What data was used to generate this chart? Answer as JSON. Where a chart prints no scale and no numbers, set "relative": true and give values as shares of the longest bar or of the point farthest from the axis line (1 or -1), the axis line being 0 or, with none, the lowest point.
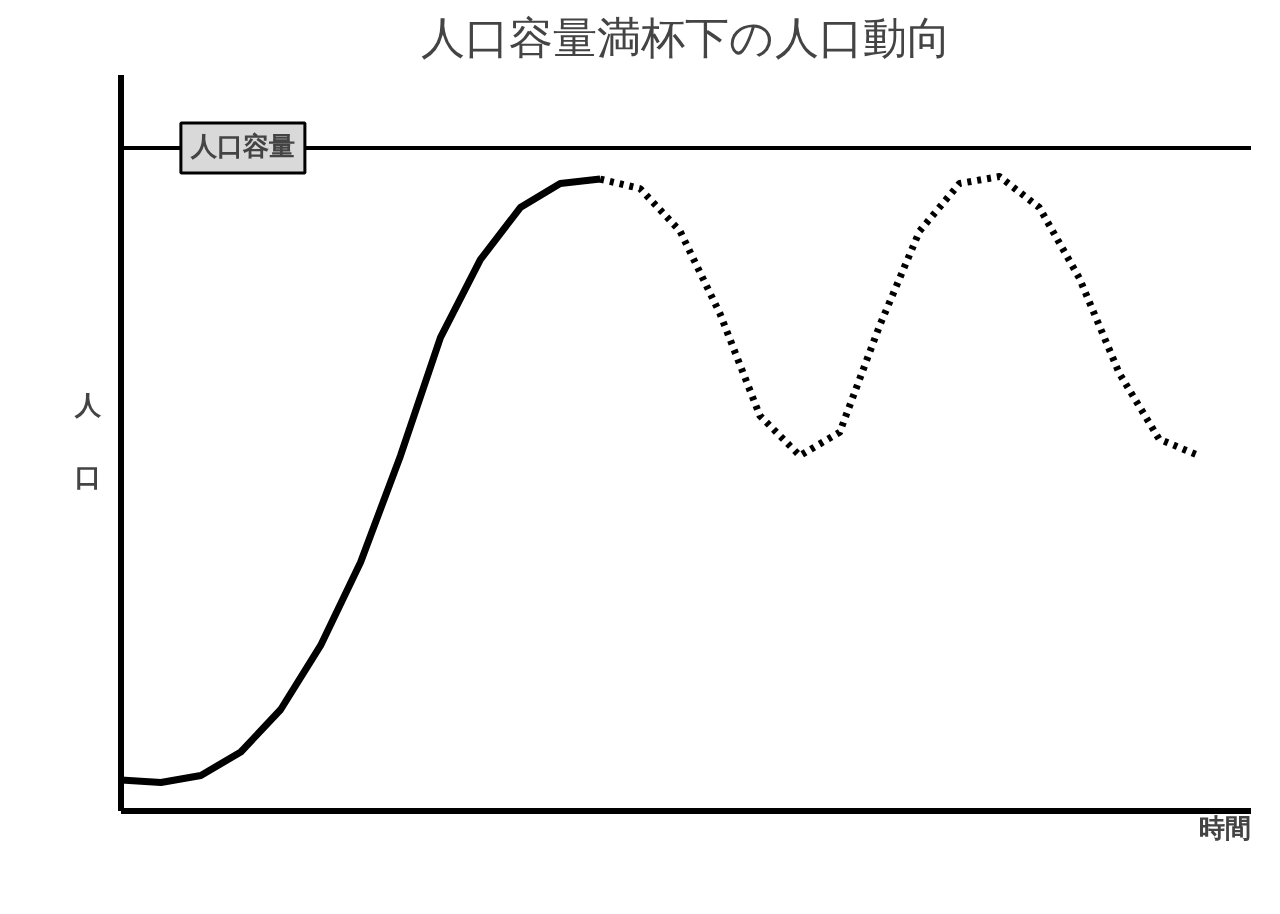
{
  "chart_data": {
    "type": "line",
    "title": "人口容量満杯下の人口動向",
    "ylabel": "人口",
    "xlabel": "時間",
    "relative": true,
    "marker": "none",
    "categories": [
      null,
      null,
      null,
      null,
      null,
      null,
      null,
      null,
      null,
      null,
      null,
      null,
      null,
      null,
      null,
      null,
      null,
      null,
      null,
      null,
      null,
      null,
      null,
      null,
      null,
      null,
      null,
      null
    ],
    "series": [
      {
        "color": "#000000",
        "line_style": "solid",
        "values": [
          0.049,
          0.045,
          0.056,
          0.093,
          0.16,
          0.261,
          0.392,
          0.56,
          0.746,
          0.869,
          0.951,
          0.989,
          0.996,
          null,
          null,
          null,
          null,
          null,
          null,
          null,
          null,
          null,
          null,
          null,
          null,
          null,
          null,
          null
        ]
      },
      {
        "color": "#000000",
        "line_style": "dotted",
        "values": [
          null,
          null,
          null,
          null,
          null,
          null,
          null,
          null,
          null,
          null,
          null,
          null,
          0.996,
          0.981,
          0.914,
          0.784,
          0.623,
          0.56,
          0.597,
          0.765,
          0.914,
          0.989,
          1,
          0.951,
          0.84,
          0.69,
          0.586,
          0.56
        ]
      }
    ],
    "ref_lines": [
      {
        "axis": "y",
        "value": 1.045,
        "label": "人口容量",
        "color": "#000000",
        "line_style": "solid"
      }
    ]
  }
}
